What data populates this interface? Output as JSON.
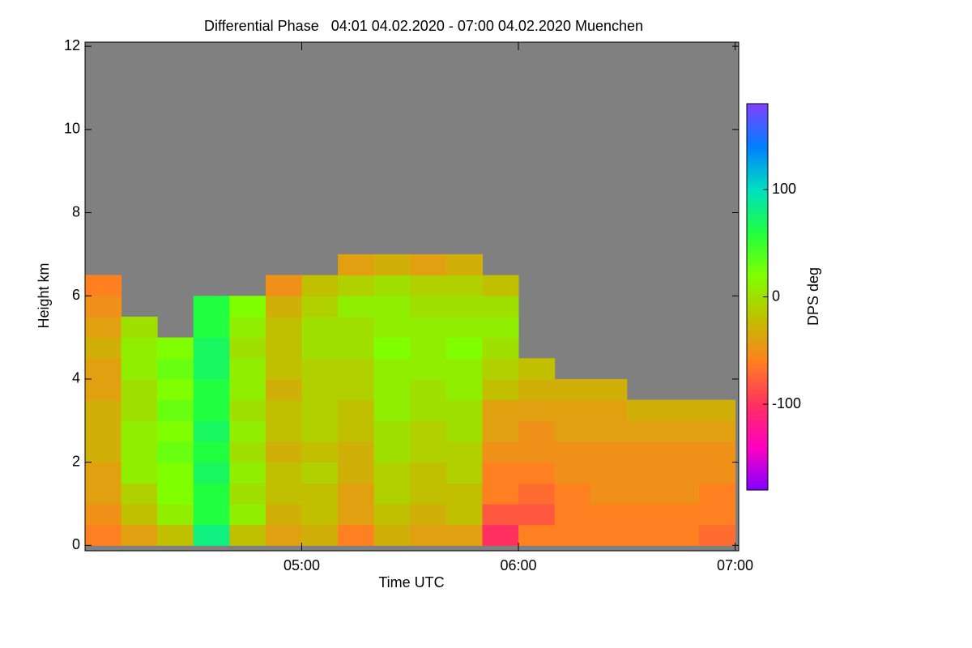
{
  "chart_data": {
    "type": "heatmap",
    "title": "Differential Phase   04:01 04.02.2020 - 07:00 04.02.2020 Muenchen",
    "x_label": "Time UTC",
    "y_label": "Height km",
    "colorbar_label": "DPS deg",
    "xlim": [
      240,
      421
    ],
    "ylim": [
      -0.13,
      12.1
    ],
    "xticks": [
      {
        "value": 300,
        "label": "05:00"
      },
      {
        "value": 360,
        "label": "06:00"
      },
      {
        "value": 420,
        "label": "07:00"
      }
    ],
    "yticks": [
      0,
      2,
      4,
      6,
      8,
      10,
      12
    ],
    "clim": [
      -180,
      180
    ],
    "cticks": [
      -100,
      0,
      100
    ],
    "colormap": [
      "#8000ff",
      "#ff00c0",
      "#ff3060",
      "#ff8020",
      "#c0c000",
      "#80ff00",
      "#20ff40",
      "#00e0c0",
      "#0080ff",
      "#8040ff"
    ],
    "background": "#808080",
    "x_bins": [
      240,
      250,
      260,
      270,
      280,
      290,
      300,
      310,
      320,
      330,
      340,
      350,
      360,
      370,
      380,
      390,
      400,
      410,
      420
    ],
    "y_bins": [
      0,
      0.5,
      1,
      1.5,
      2,
      2.5,
      3,
      3.5,
      4,
      4.5,
      5,
      5.5,
      6,
      6.5,
      7
    ],
    "z": [
      [
        -60,
        -50,
        -40,
        -40,
        -30,
        -30,
        -30,
        -40,
        -40,
        -30,
        -40,
        -50,
        -60,
        null
      ],
      [
        -40,
        -20,
        -10,
        10,
        10,
        10,
        0,
        0,
        10,
        10,
        0,
        null,
        null,
        null
      ],
      [
        -20,
        10,
        20,
        20,
        30,
        20,
        30,
        20,
        30,
        20,
        null,
        null,
        null,
        null
      ],
      [
        80,
        60,
        60,
        70,
        60,
        70,
        60,
        60,
        70,
        70,
        60,
        60,
        null,
        null
      ],
      [
        -20,
        10,
        0,
        10,
        0,
        10,
        0,
        10,
        10,
        0,
        10,
        20,
        null,
        null
      ],
      [
        -40,
        -30,
        -20,
        -20,
        -30,
        -20,
        -20,
        -30,
        -20,
        -20,
        -20,
        -30,
        -50,
        null
      ],
      [
        -30,
        -20,
        -20,
        -10,
        -20,
        -10,
        -10,
        -10,
        -10,
        0,
        0,
        -10,
        -20,
        null
      ],
      [
        -60,
        -40,
        -40,
        -30,
        -30,
        -20,
        -20,
        -10,
        -10,
        0,
        0,
        10,
        -10,
        -40
      ],
      [
        -30,
        -20,
        -10,
        -10,
        0,
        0,
        10,
        10,
        10,
        20,
        10,
        10,
        0,
        -30
      ],
      [
        -40,
        -30,
        -20,
        -20,
        -10,
        -10,
        0,
        0,
        10,
        10,
        10,
        0,
        -10,
        -40
      ],
      [
        -40,
        -20,
        -20,
        -10,
        -10,
        0,
        0,
        10,
        10,
        20,
        10,
        0,
        -10,
        -30
      ],
      [
        -100,
        -80,
        -60,
        -60,
        -50,
        -40,
        -40,
        -20,
        -10,
        0,
        10,
        0,
        -20,
        null
      ],
      [
        -60,
        -80,
        -70,
        -60,
        -50,
        -50,
        -40,
        -30,
        -20,
        null,
        null,
        null,
        null,
        null
      ],
      [
        -60,
        -60,
        -60,
        -50,
        -50,
        -40,
        -40,
        -30,
        null,
        null,
        null,
        null,
        null,
        null
      ],
      [
        -60,
        -60,
        -50,
        -50,
        -50,
        -40,
        -40,
        -30,
        null,
        null,
        null,
        null,
        null,
        null
      ],
      [
        -60,
        -60,
        -50,
        -50,
        -50,
        -40,
        -30,
        null,
        null,
        null,
        null,
        null,
        null,
        null
      ],
      [
        -60,
        -60,
        -50,
        -50,
        -50,
        -40,
        -30,
        null,
        null,
        null,
        null,
        null,
        null,
        null
      ],
      [
        -70,
        -60,
        -60,
        -50,
        -50,
        -40,
        -30,
        null,
        null,
        null,
        null,
        null,
        null,
        null
      ]
    ]
  }
}
